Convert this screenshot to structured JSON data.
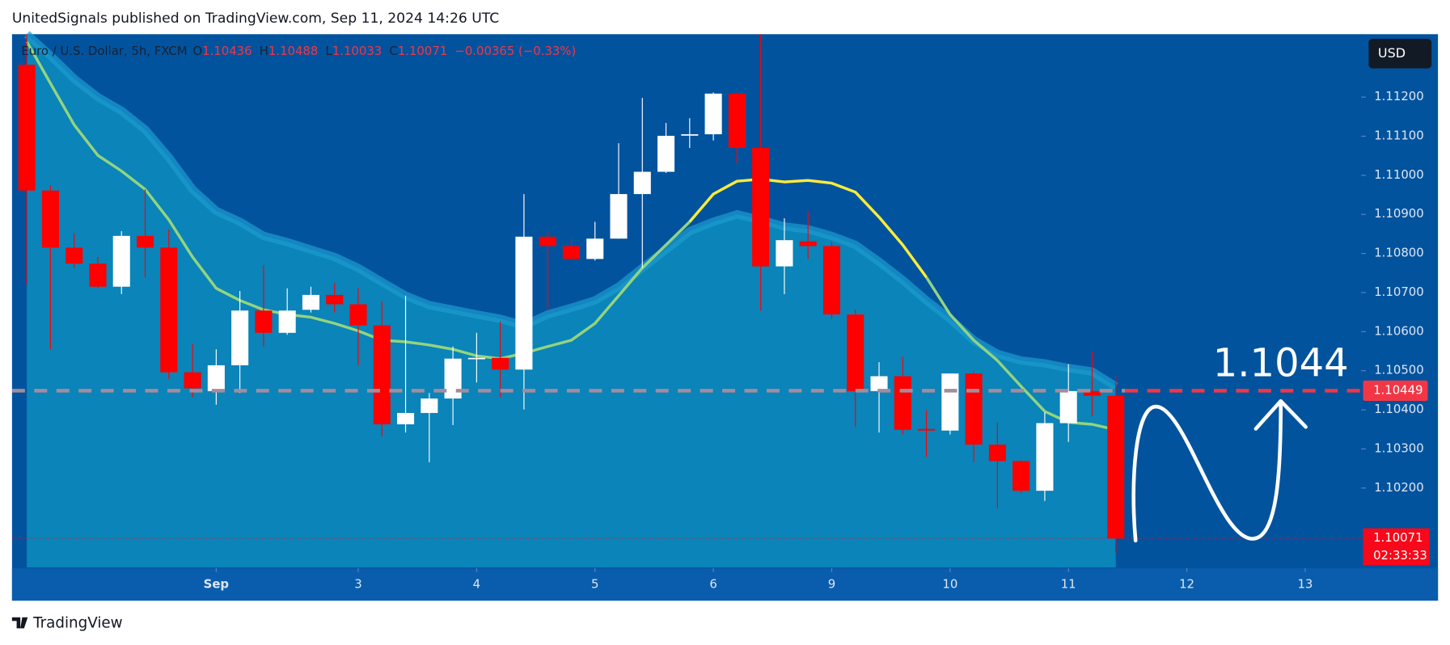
{
  "header": {
    "attribution": "UnitedSignals published on TradingView.com, Sep 11, 2024 14:26 UTC",
    "brand": "TradingView"
  },
  "chart_data": {
    "type": "candlestick",
    "symbol": "Euro / U.S. Dollar, 5h, FXCM",
    "ohlc_legend": [
      {
        "key": "O",
        "value": "1.10436"
      },
      {
        "key": "H",
        "value": "1.10488"
      },
      {
        "key": "L",
        "value": "1.10033"
      },
      {
        "key": "C",
        "value": "1.10071"
      }
    ],
    "change": "−0.00365 (−0.33%)",
    "currency": "USD",
    "up_color": "#ffffff",
    "down_color": "#ff0000",
    "open": [
      1.11283,
      1.10961,
      1.10815,
      1.10774,
      1.10715,
      1.10845,
      1.10815,
      1.10496,
      1.10448,
      1.10514,
      1.10654,
      1.10597,
      1.10656,
      1.10694,
      1.1067,
      1.10616,
      1.10363,
      1.10392,
      1.10429,
      1.10531,
      1.10533,
      1.10503,
      1.10843,
      1.10819,
      1.10786,
      1.10838,
      1.10952,
      1.11009,
      1.11103,
      1.11105,
      1.11209,
      1.1107,
      1.10767,
      1.10831,
      1.10819,
      1.10644,
      1.10448,
      1.10486,
      1.10351,
      1.10347,
      1.10493,
      1.10311,
      1.10269,
      1.10193,
      1.10366,
      1.10448,
      1.10436
    ],
    "high": [
      1.11361,
      1.10975,
      1.10852,
      1.10791,
      1.10857,
      1.10964,
      1.10862,
      1.10569,
      1.10555,
      1.10704,
      1.1077,
      1.10711,
      1.10715,
      1.10725,
      1.10711,
      1.10678,
      1.10692,
      1.10443,
      1.10562,
      1.10597,
      1.10626,
      1.10952,
      1.10857,
      1.10838,
      1.10881,
      1.11082,
      1.11198,
      1.11134,
      1.11146,
      1.11212,
      1.11212,
      1.11361,
      1.1089,
      1.10909,
      1.10829,
      1.10656,
      1.10522,
      1.10536,
      1.10399,
      1.10493,
      1.10498,
      1.10368,
      1.10271,
      1.10394,
      1.10517,
      1.1055,
      1.10488
    ],
    "low": [
      1.1072,
      1.10555,
      1.10763,
      1.10711,
      1.10696,
      1.10739,
      1.10479,
      1.10432,
      1.10413,
      1.10443,
      1.10562,
      1.10592,
      1.10649,
      1.10649,
      1.10514,
      1.10332,
      1.10342,
      1.10266,
      1.10361,
      1.1047,
      1.10432,
      1.10401,
      1.10656,
      1.10782,
      1.10782,
      1.10838,
      1.10763,
      1.11006,
      1.1107,
      1.11089,
      1.1103,
      1.10654,
      1.10696,
      1.10786,
      1.10633,
      1.10356,
      1.10342,
      1.10337,
      1.1028,
      1.10337,
      1.10266,
      1.10148,
      1.10186,
      1.10167,
      1.10318,
      1.10384,
      1.10033
    ],
    "close": [
      1.10961,
      1.10815,
      1.10774,
      1.10715,
      1.10845,
      1.10815,
      1.10496,
      1.10455,
      1.10514,
      1.10654,
      1.10597,
      1.10654,
      1.10694,
      1.1067,
      1.10616,
      1.10363,
      1.10392,
      1.10429,
      1.10531,
      1.10533,
      1.10503,
      1.10843,
      1.10819,
      1.10786,
      1.10838,
      1.10952,
      1.11009,
      1.11101,
      1.11105,
      1.11209,
      1.1107,
      1.10767,
      1.10834,
      1.10819,
      1.10644,
      1.10448,
      1.10486,
      1.10349,
      1.10347,
      1.10493,
      1.10311,
      1.10269,
      1.10193,
      1.10366,
      1.10448,
      1.10436,
      1.10071
    ],
    "band": {
      "color": "#1d9dd0",
      "fill": "#0a84b9",
      "values": [
        1.11361,
        1.11306,
        1.11247,
        1.112,
        1.11165,
        1.11117,
        1.11046,
        1.10964,
        1.10909,
        1.10881,
        1.10845,
        1.10829,
        1.1081,
        1.10791,
        1.10763,
        1.10727,
        1.10692,
        1.10668,
        1.10656,
        1.10644,
        1.10633,
        1.10616,
        1.10644,
        1.10661,
        1.1068,
        1.10715,
        1.10763,
        1.1081,
        1.10857,
        1.10881,
        1.109,
        1.10886,
        1.10869,
        1.10862,
        1.10845,
        1.10822,
        1.10779,
        1.10732,
        1.1068,
        1.10633,
        1.10578,
        1.10543,
        1.10526,
        1.10519,
        1.10507,
        1.10498,
        1.1046
      ]
    },
    "lines": [
      {
        "color": "#93d47e",
        "values": [
          1.11342,
          1.11235,
          1.11129,
          1.11051,
          1.11011,
          1.10964,
          1.10886,
          1.10791,
          1.10711,
          1.1068,
          1.10656,
          1.10644,
          1.10637,
          1.10621,
          1.10602,
          1.10578,
          1.10574,
          1.10566,
          1.10555,
          1.10538,
          1.10531,
          1.10545,
          1.10562,
          1.10578,
          1.10621,
          1.10692,
          1.10763,
          1.10822,
          1.10881,
          null,
          null,
          null,
          null,
          null,
          null,
          null,
          null,
          null,
          1.10739,
          1.10644,
          1.10578,
          1.10526,
          1.1046,
          1.10396,
          1.10368,
          1.10363,
          1.10349
        ]
      },
      {
        "color": "#ffeb3b",
        "values": [
          null,
          null,
          null,
          null,
          null,
          null,
          null,
          null,
          null,
          null,
          null,
          null,
          null,
          null,
          null,
          null,
          null,
          null,
          null,
          null,
          null,
          null,
          null,
          null,
          null,
          null,
          null,
          null,
          1.10881,
          1.10952,
          1.10985,
          1.1099,
          1.10983,
          1.10987,
          1.1098,
          1.10957,
          1.10893,
          1.10822,
          1.10739,
          null,
          null,
          null,
          null,
          null,
          null,
          null,
          null
        ]
      }
    ],
    "hline": {
      "value": 1.10449,
      "label": "1.10449",
      "color": "#f23645"
    },
    "last_price": {
      "value": 1.10071,
      "label": "1.10071",
      "countdown": "02:33:33",
      "color": "#f7081a"
    },
    "annotation": "1.1044",
    "xlim": [
      -0.625,
      56.367
    ],
    "xticks": [
      {
        "value": 8,
        "label": "Sep"
      },
      {
        "value": 14,
        "label": "3"
      },
      {
        "value": 19,
        "label": "4"
      },
      {
        "value": 24,
        "label": "5"
      },
      {
        "value": 29,
        "label": "6"
      },
      {
        "value": 34,
        "label": "9"
      },
      {
        "value": 39,
        "label": "10"
      },
      {
        "value": 44,
        "label": "11"
      },
      {
        "value": 49,
        "label": "12"
      },
      {
        "value": 54,
        "label": "13"
      }
    ],
    "ylim": [
      1.09997,
      1.11361
    ],
    "yticks": [
      {
        "value": 1.102,
        "label": "1.10200"
      },
      {
        "value": 1.103,
        "label": "1.10300"
      },
      {
        "value": 1.104,
        "label": "1.10400"
      },
      {
        "value": 1.105,
        "label": "1.10500"
      },
      {
        "value": 1.106,
        "label": "1.10600"
      },
      {
        "value": 1.107,
        "label": "1.10700"
      },
      {
        "value": 1.108,
        "label": "1.10800"
      },
      {
        "value": 1.109,
        "label": "1.10900"
      },
      {
        "value": 1.11,
        "label": "1.11000"
      },
      {
        "value": 1.111,
        "label": "1.11100"
      },
      {
        "value": 1.112,
        "label": "1.11200"
      }
    ]
  }
}
